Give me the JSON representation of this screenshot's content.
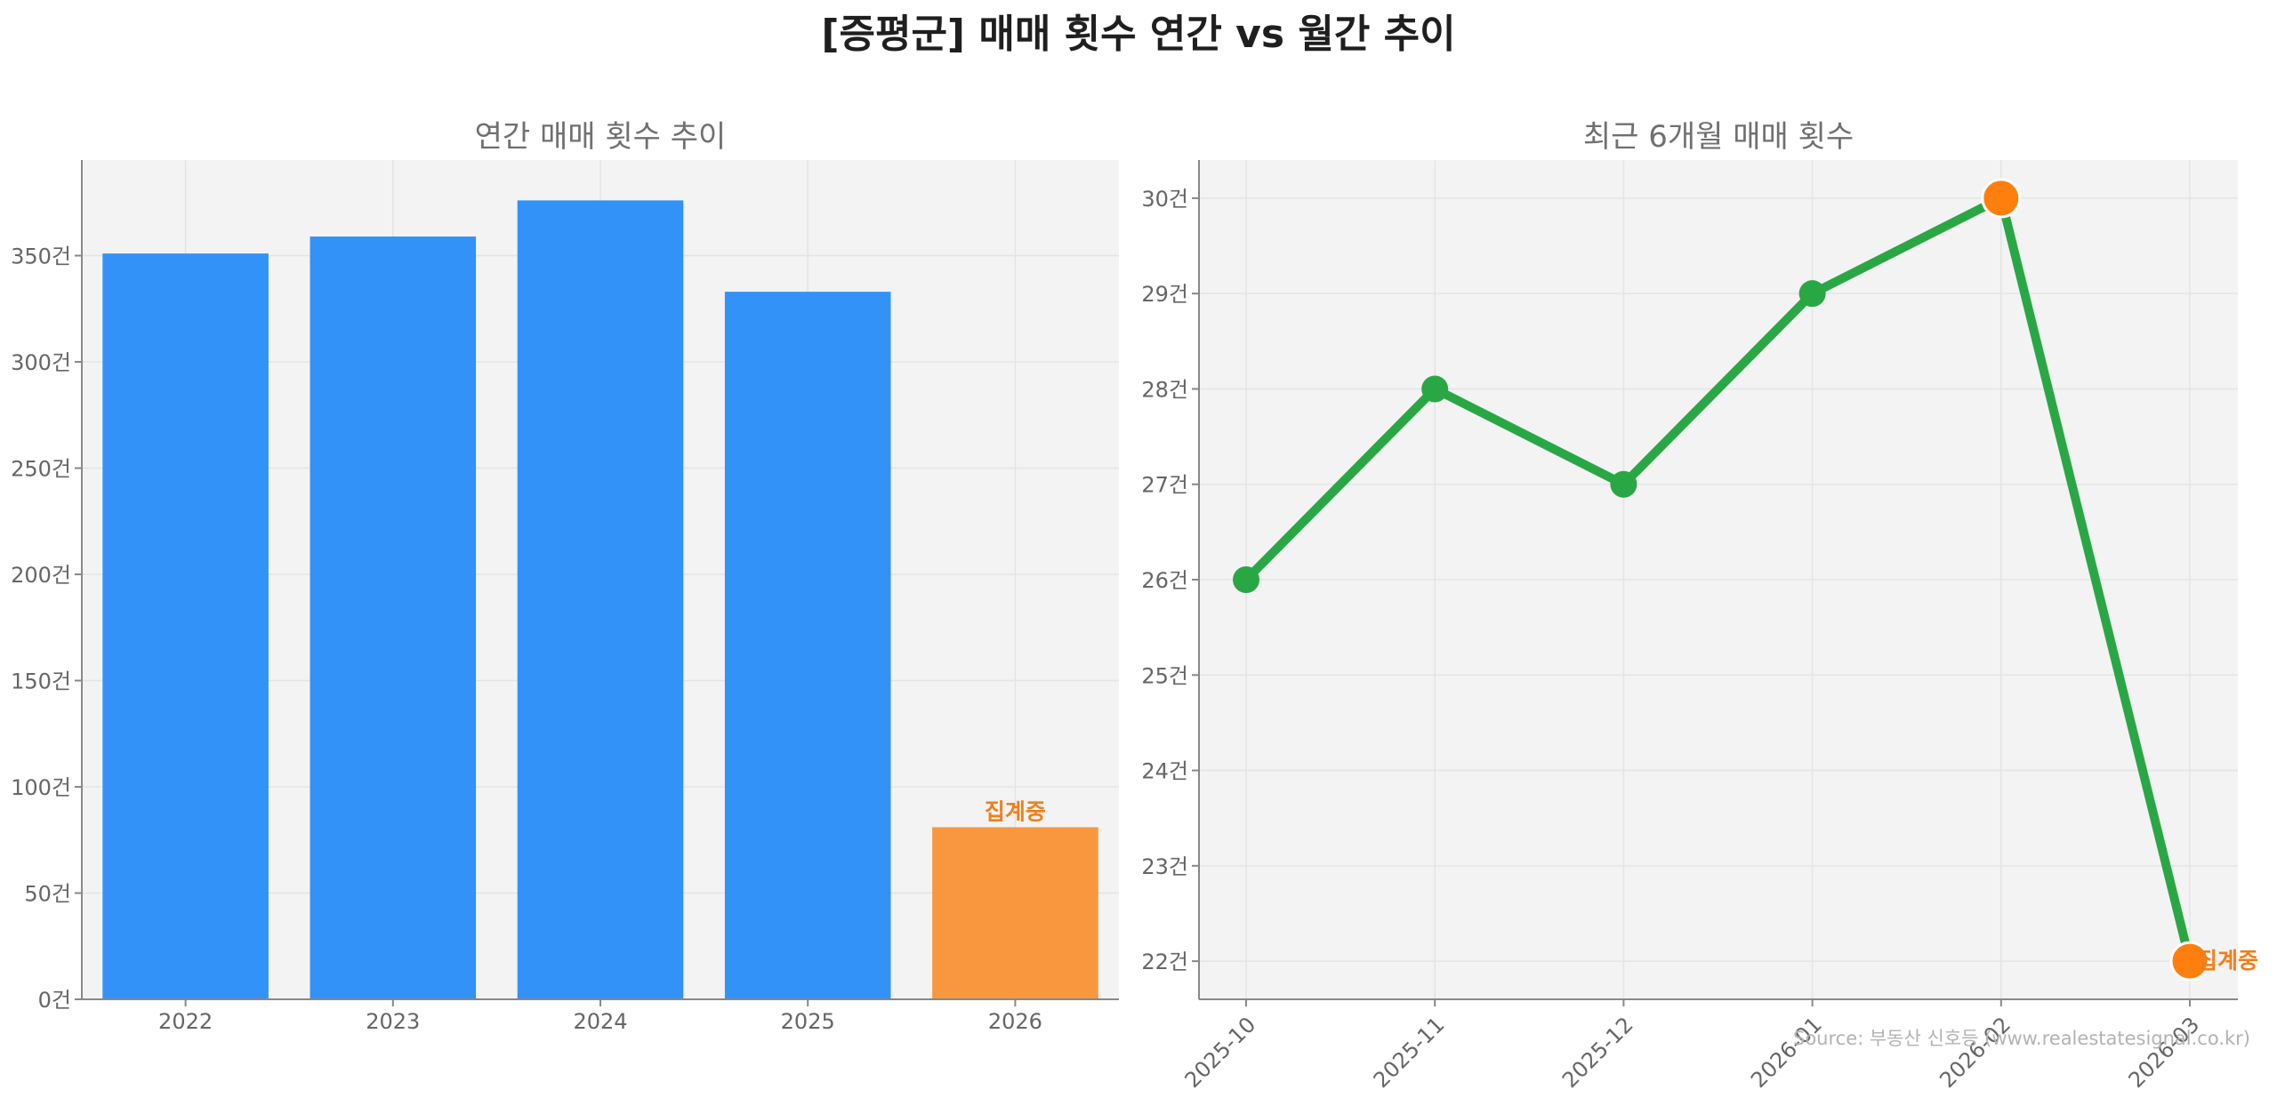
{
  "title": "[증평군] 매매 횟수 연간 vs 월간 추이",
  "source": "Source: 부동산 신호등 (www.realestatesignal.co.kr)",
  "colors": {
    "bar": "#3292f8",
    "bar_highlight": "#f9973f",
    "line": "#2aa745",
    "marker_highlight": "#ff7f0e",
    "plot_bg": "#f3f3f3",
    "grid": "#e4e4e4"
  },
  "chart_data": [
    {
      "type": "bar",
      "title": "연간 매매 횟수 추이",
      "categories": [
        "2022",
        "2023",
        "2024",
        "2025",
        "2026"
      ],
      "values": [
        351,
        359,
        376,
        333,
        81
      ],
      "highlight_index": 4,
      "highlight_label": "집계중",
      "ylim": [
        0,
        395
      ],
      "yticks": [
        0,
        50,
        100,
        150,
        200,
        250,
        300,
        350
      ],
      "y_unit": "건",
      "grid": true
    },
    {
      "type": "line",
      "title": "최근 6개월 매매 횟수",
      "x": [
        "2025-10",
        "2025-11",
        "2025-12",
        "2026-01",
        "2026-02",
        "2026-03"
      ],
      "values": [
        26,
        28,
        27,
        29,
        30,
        22
      ],
      "highlight_indices": [
        4,
        5
      ],
      "highlight_label": "집계중",
      "ylim": [
        21.6,
        30.4
      ],
      "yticks": [
        22,
        23,
        24,
        25,
        26,
        27,
        28,
        29,
        30
      ],
      "y_unit": "건",
      "grid": true
    }
  ]
}
